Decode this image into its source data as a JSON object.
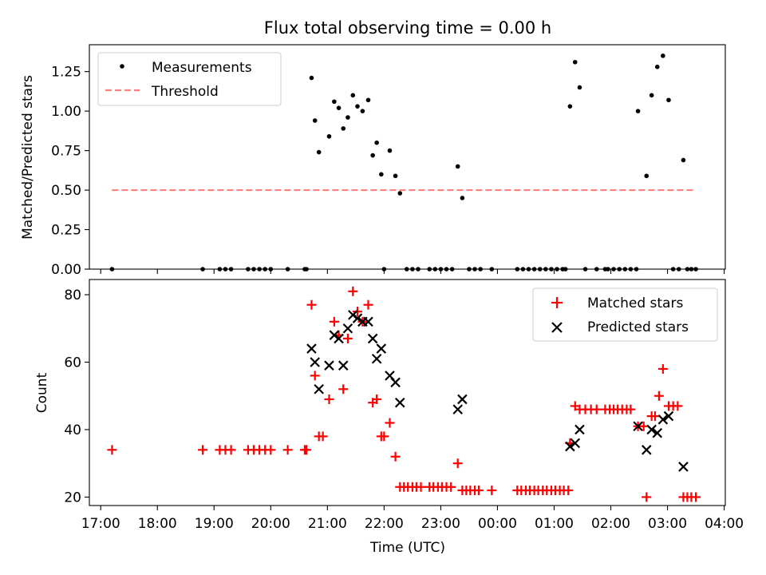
{
  "chart_data": [
    {
      "type": "scatter",
      "title": "Flux total observing time = 0.00 h",
      "xlabel": "",
      "ylabel": "Matched/Predicted stars",
      "xlim": [
        16.8,
        28.02
      ],
      "ylim": [
        0,
        1.42
      ],
      "yticks": [
        0.0,
        0.25,
        0.5,
        0.75,
        1.0,
        1.25
      ],
      "ytick_labels": [
        "0.00",
        "0.25",
        "0.50",
        "0.75",
        "1.00",
        "1.25"
      ],
      "legend_position": "top-left",
      "series": [
        {
          "name": "Measurements",
          "x": [
            17.2,
            18.8,
            19.1,
            19.2,
            19.3,
            19.6,
            19.7,
            19.8,
            19.9,
            20.0,
            20.3,
            20.6,
            20.63,
            20.72,
            20.78,
            20.85,
            21.03,
            21.12,
            21.2,
            21.28,
            21.36,
            21.45,
            21.53,
            21.62,
            21.72,
            21.8,
            21.87,
            21.95,
            22.0,
            22.1,
            22.2,
            22.28,
            22.4,
            22.5,
            22.6,
            22.8,
            22.9,
            23.0,
            23.1,
            23.2,
            23.3,
            23.38,
            23.5,
            23.6,
            23.7,
            23.9,
            24.35,
            24.45,
            24.55,
            24.65,
            24.75,
            24.85,
            24.95,
            25.05,
            25.15,
            25.2,
            25.28,
            25.37,
            25.45,
            25.55,
            25.75,
            25.9,
            25.95,
            26.05,
            26.15,
            26.25,
            26.35,
            26.45,
            26.48,
            26.63,
            26.72,
            26.82,
            26.92,
            27.02,
            27.1,
            27.2,
            27.28,
            27.35,
            27.42,
            27.5
          ],
          "y": [
            0,
            0,
            0,
            0,
            0,
            0,
            0,
            0,
            0,
            0,
            0,
            0,
            0,
            1.21,
            0.94,
            0.74,
            0.84,
            1.06,
            1.02,
            0.89,
            0.96,
            1.1,
            1.03,
            1.0,
            1.07,
            0.72,
            0.8,
            0.6,
            0,
            0.75,
            0.59,
            0.48,
            0,
            0,
            0,
            0,
            0,
            0,
            0,
            0,
            0.65,
            0.45,
            0,
            0,
            0,
            0,
            0,
            0,
            0,
            0,
            0,
            0,
            0,
            0,
            0,
            0,
            1.03,
            1.31,
            1.15,
            0,
            0,
            0,
            0,
            0,
            0,
            0,
            0,
            0,
            1.0,
            0.59,
            1.1,
            1.28,
            1.35,
            1.07,
            0,
            0,
            0.69,
            0,
            0,
            0
          ]
        },
        {
          "name": "Threshold",
          "x": [
            17.2,
            27.5
          ],
          "y": [
            0.5,
            0.5
          ]
        }
      ]
    },
    {
      "type": "scatter",
      "title": "",
      "xlabel": "Time (UTC)",
      "ylabel": "Count",
      "xlim": [
        16.8,
        28.02
      ],
      "ylim": [
        17.5,
        84.5
      ],
      "yticks": [
        20,
        40,
        60,
        80
      ],
      "ytick_labels": [
        "20",
        "40",
        "60",
        "80"
      ],
      "xticks": [
        17,
        18,
        19,
        20,
        21,
        22,
        23,
        24,
        25,
        26,
        27,
        28
      ],
      "xtick_labels": [
        "17:00",
        "18:00",
        "19:00",
        "20:00",
        "21:00",
        "22:00",
        "23:00",
        "00:00",
        "01:00",
        "02:00",
        "03:00",
        "04:00"
      ],
      "legend_position": "top-right",
      "series": [
        {
          "name": "Matched stars",
          "x": [
            17.2,
            18.8,
            19.1,
            19.2,
            19.3,
            19.6,
            19.7,
            19.8,
            19.9,
            20.0,
            20.3,
            20.6,
            20.63,
            20.72,
            20.78,
            20.85,
            20.92,
            21.03,
            21.12,
            21.2,
            21.28,
            21.36,
            21.45,
            21.53,
            21.62,
            21.72,
            21.8,
            21.87,
            21.95,
            22.0,
            22.1,
            22.2,
            22.28,
            22.35,
            22.42,
            22.5,
            22.57,
            22.65,
            22.8,
            22.87,
            22.95,
            23.02,
            23.1,
            23.18,
            23.3,
            23.38,
            23.45,
            23.52,
            23.6,
            23.67,
            23.9,
            24.35,
            24.42,
            24.5,
            24.57,
            24.65,
            24.72,
            24.8,
            24.87,
            24.95,
            25.02,
            25.1,
            25.17,
            25.25,
            25.28,
            25.37,
            25.45,
            25.55,
            25.65,
            25.75,
            25.9,
            25.98,
            26.05,
            26.12,
            26.2,
            26.28,
            26.35,
            26.48,
            26.58,
            26.63,
            26.72,
            26.78,
            26.85,
            26.92,
            27.02,
            27.1,
            27.18,
            27.28,
            27.35,
            27.42,
            27.5
          ],
          "y": [
            34,
            34,
            34,
            34,
            34,
            34,
            34,
            34,
            34,
            34,
            34,
            34,
            34,
            77,
            56,
            38,
            38,
            49,
            72,
            68,
            52,
            67,
            81,
            75,
            72,
            77,
            48,
            49,
            38,
            38,
            42,
            32,
            23,
            23,
            23,
            23,
            23,
            23,
            23,
            23,
            23,
            23,
            23,
            23,
            30,
            22,
            22,
            22,
            22,
            22,
            22,
            22,
            22,
            22,
            22,
            22,
            22,
            22,
            22,
            22,
            22,
            22,
            22,
            22,
            36,
            47,
            46,
            46,
            46,
            46,
            46,
            46,
            46,
            46,
            46,
            46,
            46,
            41,
            41,
            20,
            44,
            44,
            50,
            58,
            47,
            47,
            47,
            20,
            20,
            20,
            20
          ]
        },
        {
          "name": "Predicted stars",
          "x": [
            20.72,
            20.78,
            20.85,
            21.03,
            21.12,
            21.2,
            21.28,
            21.36,
            21.45,
            21.53,
            21.62,
            21.72,
            21.8,
            21.87,
            21.95,
            22.1,
            22.2,
            22.28,
            23.3,
            23.38,
            25.28,
            25.37,
            25.45,
            26.48,
            26.63,
            26.72,
            26.82,
            26.92,
            27.02,
            27.28
          ],
          "y": [
            64,
            60,
            52,
            59,
            68,
            67,
            59,
            70,
            74,
            73,
            72,
            72,
            67,
            61,
            64,
            56,
            54,
            48,
            46,
            49,
            35,
            36,
            40,
            41,
            34,
            40,
            39,
            43,
            44,
            29
          ]
        }
      ]
    }
  ],
  "legend": {
    "measurements": "Measurements",
    "threshold": "Threshold",
    "matched": "Matched stars",
    "predicted": "Predicted stars"
  },
  "colors": {
    "measurements": "#000000",
    "threshold": "#ff7f7f",
    "matched": "#ff0000",
    "predicted": "#000000"
  }
}
